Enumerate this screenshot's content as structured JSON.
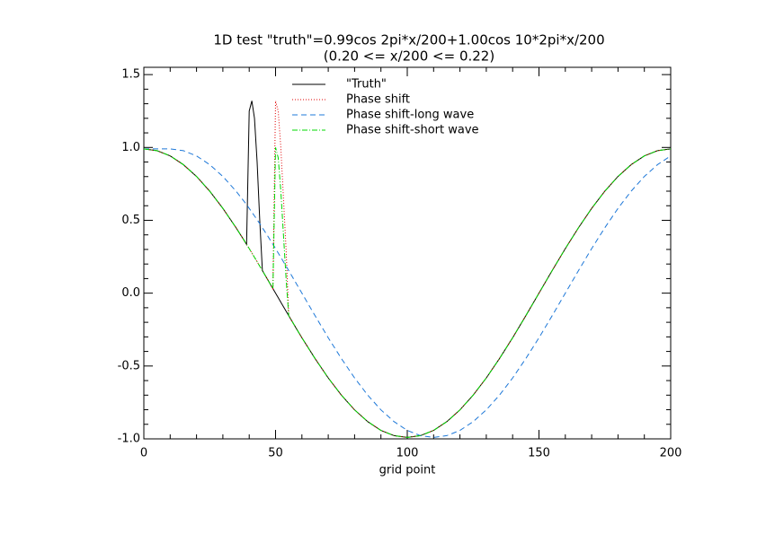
{
  "chart_data": {
    "type": "line",
    "title": "1D test \"truth\"=0.99cos 2pi*x/200+1.00cos 10*2pi*x/200",
    "subtitle": "(0.20 <= x/200 <= 0.22)",
    "x_label": "grid point",
    "x": [
      0,
      5,
      10,
      15,
      20,
      25,
      30,
      35,
      38,
      39,
      40,
      41,
      42,
      43,
      44,
      45,
      46,
      47,
      48,
      49,
      50,
      51,
      52,
      53,
      54,
      55,
      56,
      58,
      60,
      65,
      70,
      75,
      80,
      85,
      90,
      95,
      100,
      105,
      110,
      115,
      120,
      125,
      130,
      135,
      140,
      145,
      150,
      155,
      160,
      165,
      170,
      175,
      180,
      185,
      190,
      195,
      200
    ],
    "series": [
      {
        "name": "\"Truth\"",
        "color": "#000000",
        "dash": "none",
        "values": [
          0.99,
          0.978,
          0.942,
          0.882,
          0.801,
          0.7,
          0.582,
          0.449,
          0.364,
          0.335,
          1.25,
          1.32,
          1.2,
          0.9,
          0.5,
          0.155,
          0.124,
          0.093,
          0.062,
          0.031,
          0,
          -0.031,
          -0.062,
          -0.093,
          -0.124,
          -0.155,
          -0.185,
          -0.246,
          -0.306,
          -0.449,
          -0.582,
          -0.7,
          -0.801,
          -0.882,
          -0.942,
          -0.978,
          -0.99,
          -0.978,
          -0.942,
          -0.882,
          -0.801,
          -0.7,
          -0.582,
          -0.449,
          -0.306,
          -0.155,
          0,
          0.155,
          0.306,
          0.449,
          0.582,
          0.7,
          0.801,
          0.882,
          0.942,
          0.978,
          0.99
        ]
      },
      {
        "name": "Phase shift",
        "color": "#e00000",
        "dash": "1 2",
        "values": [
          0.99,
          0.978,
          0.942,
          0.882,
          0.801,
          0.7,
          0.582,
          0.449,
          0.364,
          0.335,
          0.306,
          0.276,
          0.246,
          0.216,
          0.185,
          0.155,
          0.124,
          0.093,
          0.062,
          0.031,
          1.32,
          1.25,
          1.0,
          0.65,
          0.3,
          -0.155,
          -0.185,
          -0.246,
          -0.306,
          -0.449,
          -0.582,
          -0.7,
          -0.801,
          -0.882,
          -0.942,
          -0.978,
          -0.99,
          -0.978,
          -0.942,
          -0.882,
          -0.801,
          -0.7,
          -0.582,
          -0.449,
          -0.306,
          -0.155,
          0,
          0.155,
          0.306,
          0.449,
          0.582,
          0.7,
          0.801,
          0.882,
          0.942,
          0.978,
          0.99
        ]
      },
      {
        "name": "Phase shift-long wave",
        "color": "#1e78d8",
        "dash": "6 4",
        "values": [
          0.99,
          0.99,
          0.99,
          0.978,
          0.942,
          0.882,
          0.801,
          0.7,
          0.631,
          0.607,
          0.582,
          0.556,
          0.53,
          0.504,
          0.477,
          0.449,
          0.421,
          0.393,
          0.364,
          0.335,
          0.306,
          0.276,
          0.246,
          0.216,
          0.185,
          0.155,
          0.124,
          0.062,
          0,
          -0.155,
          -0.306,
          -0.449,
          -0.582,
          -0.7,
          -0.801,
          -0.882,
          -0.942,
          -0.978,
          -0.99,
          -0.978,
          -0.942,
          -0.882,
          -0.801,
          -0.7,
          -0.582,
          -0.449,
          -0.306,
          -0.155,
          0,
          0.155,
          0.306,
          0.449,
          0.582,
          0.7,
          0.801,
          0.882,
          0.942
        ]
      },
      {
        "name": "Phase shift-short wave",
        "color": "#00d800",
        "dash": "6 2 1 2",
        "values": [
          0.99,
          0.978,
          0.942,
          0.882,
          0.801,
          0.7,
          0.582,
          0.449,
          0.364,
          0.335,
          0.306,
          0.276,
          0.246,
          0.216,
          0.185,
          0.155,
          0.124,
          0.093,
          0.062,
          0.031,
          1.0,
          0.93,
          0.7,
          0.4,
          0.1,
          -0.155,
          -0.185,
          -0.246,
          -0.306,
          -0.449,
          -0.582,
          -0.7,
          -0.801,
          -0.882,
          -0.942,
          -0.978,
          -0.99,
          -0.978,
          -0.942,
          -0.882,
          -0.801,
          -0.7,
          -0.582,
          -0.449,
          -0.306,
          -0.155,
          0,
          0.155,
          0.306,
          0.449,
          0.582,
          0.7,
          0.801,
          0.882,
          0.942,
          0.978,
          0.99
        ]
      }
    ],
    "xlim": [
      0,
      200
    ],
    "ylim": [
      -1,
      1.55
    ],
    "xticks": [
      0,
      50,
      100,
      150,
      200
    ],
    "yticks": [
      {
        "value": -1,
        "label": "-1.0"
      },
      -0.5,
      {
        "value": 0,
        "label": "0.0"
      },
      0.5,
      {
        "value": 1,
        "label": "1.0"
      },
      1.5
    ],
    "x_minor": 5,
    "y_minor": 5
  }
}
